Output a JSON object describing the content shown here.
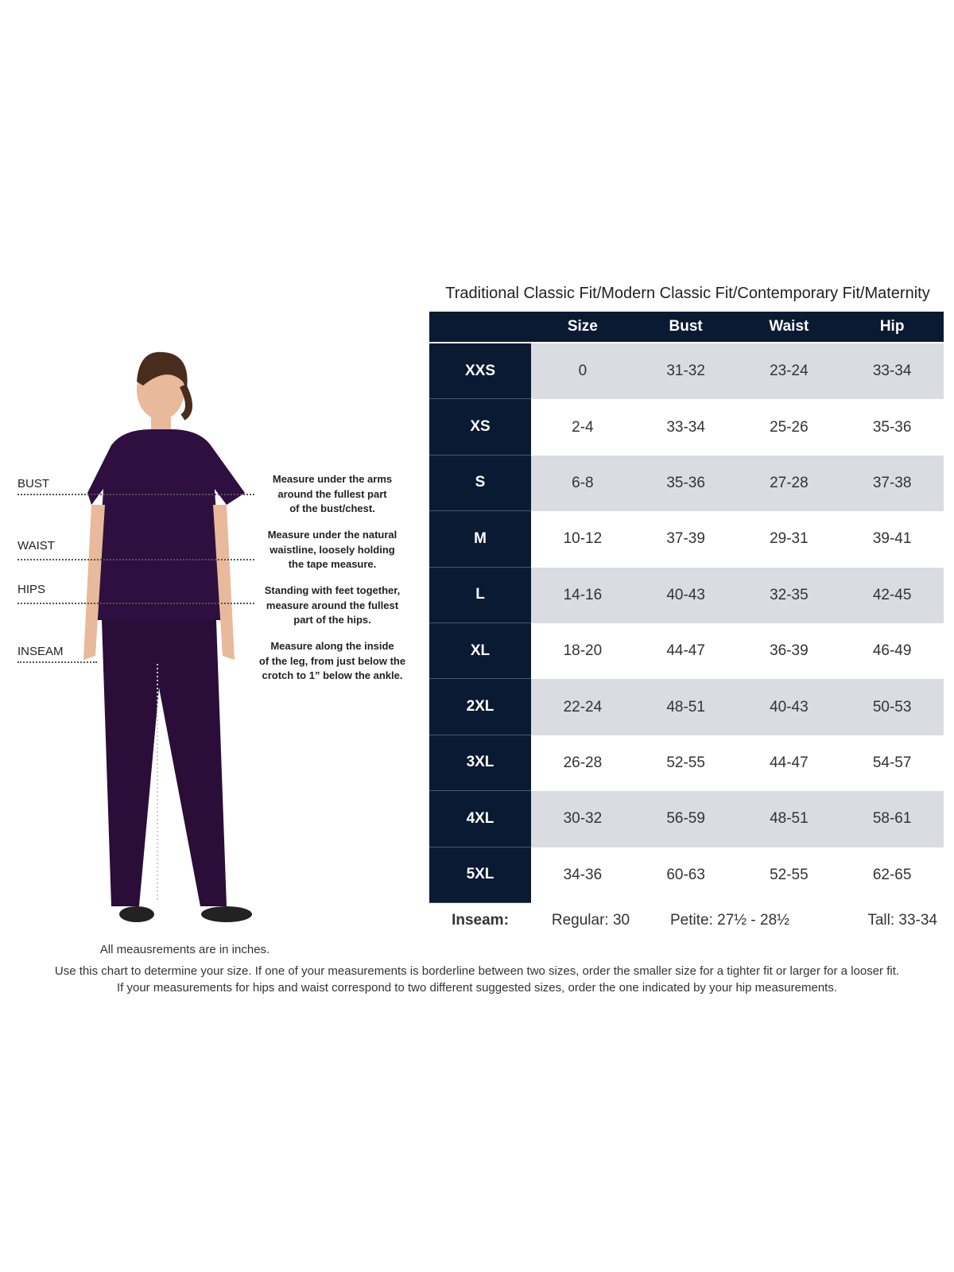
{
  "title": "Traditional Classic Fit/Modern Classic Fit/Contemporary Fit/Maternity",
  "colors": {
    "header": "#0b1a33",
    "row_alt": "#d9dce1",
    "scrubs": "#2e0f3f"
  },
  "table": {
    "headers": [
      "Size",
      "Bust",
      "Waist",
      "Hip"
    ],
    "rows": [
      {
        "label": "XXS",
        "size": "0",
        "bust": "31-32",
        "waist": "23-24",
        "hip": "33-34"
      },
      {
        "label": "XS",
        "size": "2-4",
        "bust": "33-34",
        "waist": "25-26",
        "hip": "35-36"
      },
      {
        "label": "S",
        "size": "6-8",
        "bust": "35-36",
        "waist": "27-28",
        "hip": "37-38"
      },
      {
        "label": "M",
        "size": "10-12",
        "bust": "37-39",
        "waist": "29-31",
        "hip": "39-41"
      },
      {
        "label": "L",
        "size": "14-16",
        "bust": "40-43",
        "waist": "32-35",
        "hip": "42-45"
      },
      {
        "label": "XL",
        "size": "18-20",
        "bust": "44-47",
        "waist": "36-39",
        "hip": "46-49"
      },
      {
        "label": "2XL",
        "size": "22-24",
        "bust": "48-51",
        "waist": "40-43",
        "hip": "50-53"
      },
      {
        "label": "3XL",
        "size": "26-28",
        "bust": "52-55",
        "waist": "44-47",
        "hip": "54-57"
      },
      {
        "label": "4XL",
        "size": "30-32",
        "bust": "56-59",
        "waist": "48-51",
        "hip": "58-61"
      },
      {
        "label": "5XL",
        "size": "34-36",
        "bust": "60-63",
        "waist": "52-55",
        "hip": "62-65"
      }
    ]
  },
  "inseam": {
    "label": "Inseam:",
    "regular": "Regular: 30",
    "petite": "Petite: 27½ - 28½",
    "tall": "Tall: 33-34"
  },
  "measures": [
    {
      "label": "BUST",
      "lines": [
        "Measure under the arms",
        "around the fullest part",
        "of the bust/chest."
      ]
    },
    {
      "label": "WAIST",
      "lines": [
        "Measure under the natural",
        "waistline, loosely holding",
        "the tape measure."
      ]
    },
    {
      "label": "HIPS",
      "lines": [
        "Standing with feet together,",
        "measure around the fullest",
        "part of the hips."
      ]
    },
    {
      "label": "INSEAM",
      "lines": [
        "Measure along the inside",
        "of the leg, from just below the",
        "crotch to 1” below the ankle."
      ]
    }
  ],
  "notes": {
    "units": "All meausrements are in inches.",
    "line1": "Use this chart to determine your size. If one of your measurements is borderline between two sizes, order the smaller size for a tighter fit or larger for a looser fit.",
    "line2": "If your measurements for hips and waist correspond to two different suggested sizes, order the one indicated by your hip measurements."
  }
}
